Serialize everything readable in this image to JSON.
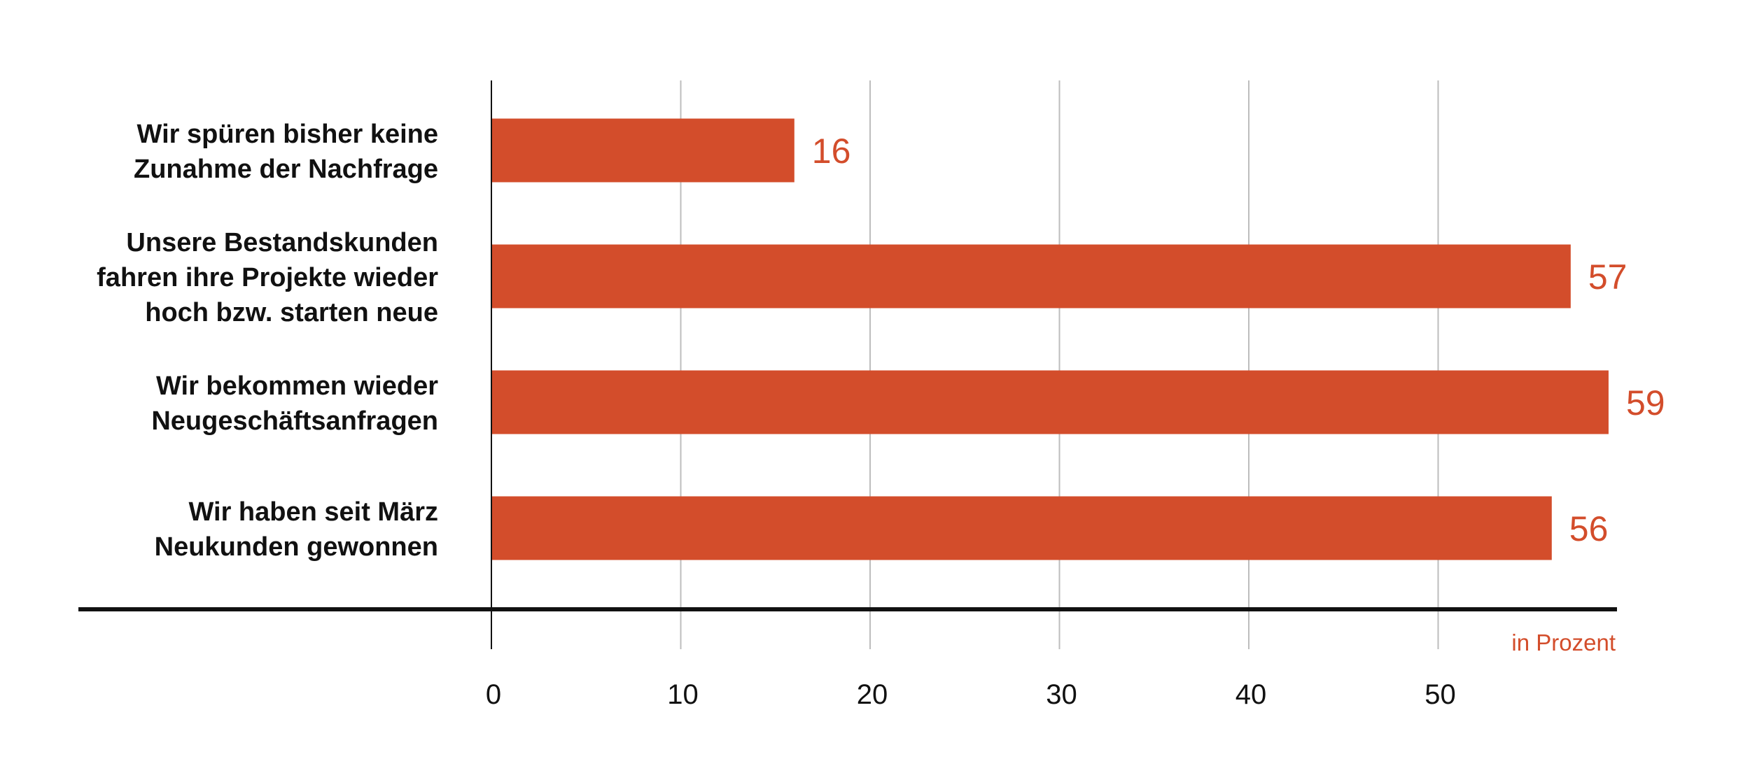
{
  "chart_data": {
    "type": "bar",
    "orientation": "horizontal",
    "categories": [
      [
        "Wir spüren bisher keine",
        "Zunahme der Nachfrage"
      ],
      [
        "Unsere Bestandskunden",
        "fahren ihre Projekte wieder",
        "hoch bzw. starten neue"
      ],
      [
        "Wir bekommen wieder",
        "Neugeschäftsanfragen"
      ],
      [
        "Wir haben seit März",
        "Neukunden gewonnen"
      ]
    ],
    "values": [
      16,
      57,
      59,
      56
    ],
    "value_labels": [
      "16",
      "57",
      "59",
      "56"
    ],
    "xlim": [
      0,
      59
    ],
    "x_ticks": [
      0,
      10,
      20,
      30,
      40,
      50
    ],
    "x_tick_labels": [
      "0",
      "10",
      "20",
      "30",
      "40",
      "50"
    ],
    "unit_label": "in Prozent",
    "grid": "vertical",
    "title": "",
    "xlabel": "",
    "ylabel": ""
  },
  "colors": {
    "bar": "#d34d2b",
    "value_text": "#d34d2b",
    "unit_text": "#d34d2b",
    "axis": "#111111",
    "grid": "#bdbdbd"
  }
}
